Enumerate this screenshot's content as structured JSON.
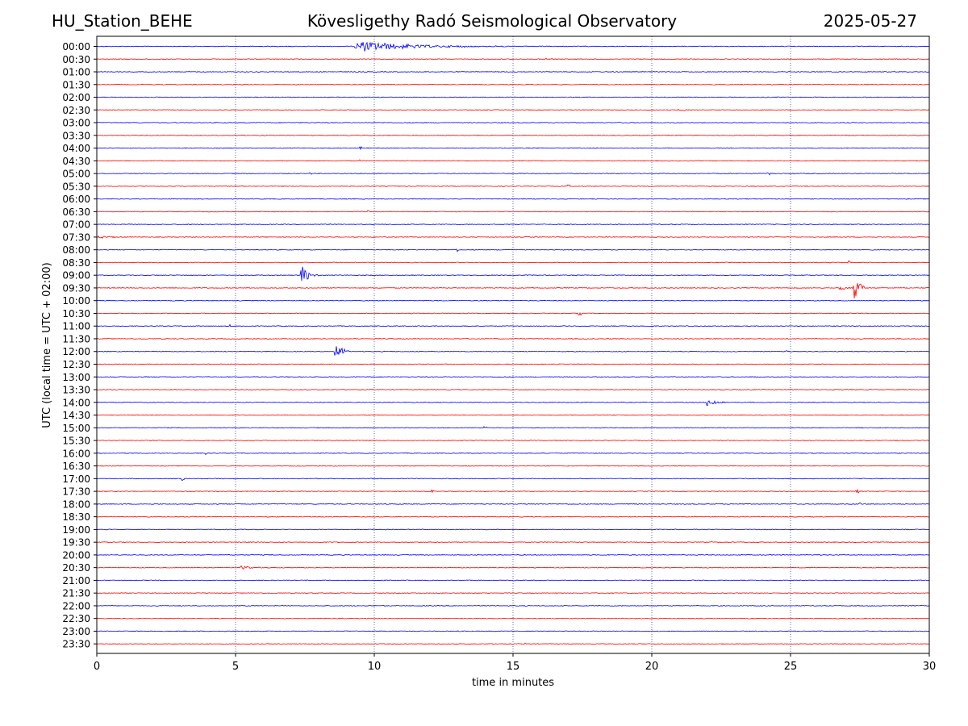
{
  "header": {
    "station": "HU_Station_BEHE",
    "title": "Kövesligethy Radó Seismological Observatory",
    "date": "2025-05-27"
  },
  "chart_data": {
    "type": "line",
    "title": "Kövesligethy Radó Seismological Observatory",
    "xlabel": "time in minutes",
    "ylabel": "UTC (local time = UTC + 02:00)",
    "xlim": [
      0,
      30
    ],
    "xticks": [
      0,
      5,
      10,
      15,
      20,
      25,
      30
    ],
    "grid": "vertical dotted lines at 5-minute intervals",
    "colors": {
      "even_rows": "#0000ff",
      "odd_rows": "#ff0000"
    },
    "rows": [
      "00:00",
      "00:30",
      "01:00",
      "01:30",
      "02:00",
      "02:30",
      "03:00",
      "03:30",
      "04:00",
      "04:30",
      "05:00",
      "05:30",
      "06:00",
      "06:30",
      "07:00",
      "07:30",
      "08:00",
      "08:30",
      "09:00",
      "09:30",
      "10:00",
      "10:30",
      "11:00",
      "11:30",
      "12:00",
      "12:30",
      "13:00",
      "13:30",
      "14:00",
      "14:30",
      "15:00",
      "15:30",
      "16:00",
      "16:30",
      "17:00",
      "17:30",
      "18:00",
      "18:30",
      "19:00",
      "19:30",
      "20:00",
      "20:30",
      "21:00",
      "21:30",
      "22:00",
      "22:30",
      "23:00",
      "23:30"
    ],
    "events": [
      {
        "row": "00:00",
        "t": 9.3,
        "amp": 7,
        "dur": 8.5,
        "kind": "teleseism"
      },
      {
        "row": "00:30",
        "t": 16.1,
        "amp": 2,
        "dur": 0.5,
        "kind": "small"
      },
      {
        "row": "02:30",
        "t": 21.0,
        "amp": 1.5,
        "dur": 1.2,
        "kind": "small"
      },
      {
        "row": "04:00",
        "t": 9.5,
        "amp": 2,
        "dur": 0.1,
        "kind": "spike"
      },
      {
        "row": "04:30",
        "t": 9.5,
        "amp": 2,
        "dur": 0.1,
        "kind": "spike"
      },
      {
        "row": "05:00",
        "t": 7.7,
        "amp": 2,
        "dur": 0.1,
        "kind": "spike"
      },
      {
        "row": "05:00",
        "t": 24.2,
        "amp": 2,
        "dur": 0.1,
        "kind": "spike"
      },
      {
        "row": "05:30",
        "t": 17.0,
        "amp": 2,
        "dur": 0.1,
        "kind": "spike"
      },
      {
        "row": "06:30",
        "t": 9.8,
        "amp": 1.5,
        "dur": 0.1,
        "kind": "spike"
      },
      {
        "row": "07:30",
        "t": 0.1,
        "amp": 1.5,
        "dur": 1.0,
        "kind": "small"
      },
      {
        "row": "08:00",
        "t": 13.0,
        "amp": 2,
        "dur": 0.2,
        "kind": "spike"
      },
      {
        "row": "08:30",
        "t": 27.1,
        "amp": 2,
        "dur": 0.1,
        "kind": "spike"
      },
      {
        "row": "09:00",
        "t": 7.4,
        "amp": 12,
        "dur": 0.6,
        "kind": "local"
      },
      {
        "row": "09:30",
        "t": 26.8,
        "amp": 3,
        "dur": 0.5,
        "kind": "small"
      },
      {
        "row": "09:30",
        "t": 27.3,
        "amp": 16,
        "dur": 0.4,
        "kind": "local"
      },
      {
        "row": "10:30",
        "t": 17.4,
        "amp": 2,
        "dur": 0.1,
        "kind": "spike"
      },
      {
        "row": "11:00",
        "t": 4.8,
        "amp": 2,
        "dur": 0.1,
        "kind": "spike"
      },
      {
        "row": "12:00",
        "t": 8.6,
        "amp": 11,
        "dur": 0.5,
        "kind": "local"
      },
      {
        "row": "12:00",
        "t": 24.9,
        "amp": 2,
        "dur": 0.1,
        "kind": "spike"
      },
      {
        "row": "14:00",
        "t": 22.0,
        "amp": 6,
        "dur": 0.7,
        "kind": "local"
      },
      {
        "row": "15:00",
        "t": 14.0,
        "amp": 2,
        "dur": 0.1,
        "kind": "spike"
      },
      {
        "row": "16:00",
        "t": 3.9,
        "amp": 2,
        "dur": 0.1,
        "kind": "spike"
      },
      {
        "row": "17:00",
        "t": 3.1,
        "amp": 2,
        "dur": 0.1,
        "kind": "spike"
      },
      {
        "row": "17:30",
        "t": 12.1,
        "amp": 2,
        "dur": 0.1,
        "kind": "spike"
      },
      {
        "row": "17:30",
        "t": 27.4,
        "amp": 2,
        "dur": 0.1,
        "kind": "spike"
      },
      {
        "row": "18:00",
        "t": 27.5,
        "amp": 2,
        "dur": 0.1,
        "kind": "spike"
      },
      {
        "row": "20:30",
        "t": 5.2,
        "amp": 2,
        "dur": 1.2,
        "kind": "small"
      },
      {
        "row": "23:30",
        "t": 15.4,
        "amp": 1.5,
        "dur": 0.1,
        "kind": "spike"
      }
    ]
  }
}
